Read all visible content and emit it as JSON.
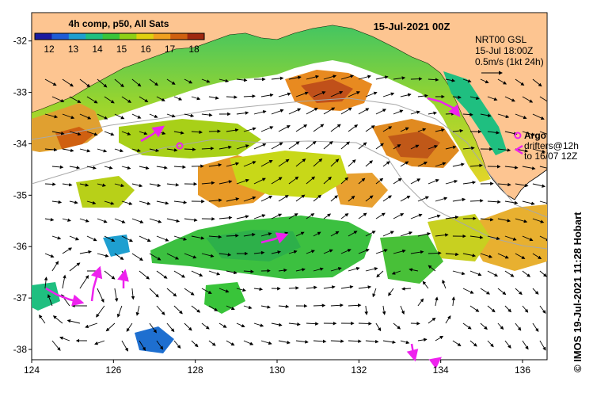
{
  "title": {
    "composite": "4h comp, p50, All Sats",
    "datetime": "15-Jul-2021 00Z"
  },
  "colorbar": {
    "ticks": [
      "12",
      "13",
      "14",
      "15",
      "16",
      "17",
      "18"
    ],
    "colors": [
      "#1a1aa0",
      "#1f5cd6",
      "#1e9fd0",
      "#1fbf80",
      "#39c43a",
      "#8ed016",
      "#e0d010",
      "#f0a020",
      "#d06010",
      "#a02810"
    ]
  },
  "current_info": {
    "source": "NRT00 GSL",
    "time": "15-Jul 18:00Z",
    "scale": "0.5m/s (1kt 24h)"
  },
  "legend": {
    "argo": "Argo",
    "drifters": "drifters@12h",
    "drifters_to": "to 16/07 12Z"
  },
  "axes": {
    "lon_ticks": [
      "124",
      "126",
      "128",
      "130",
      "132",
      "134",
      "136"
    ],
    "lat_ticks": [
      "-32",
      "-33",
      "-34",
      "-35",
      "-36",
      "-37",
      "-38"
    ],
    "lon_range": [
      124,
      136.6
    ],
    "lat_range": [
      -38.2,
      -31.45
    ]
  },
  "credit": "© IMOS 19-Jul-2021 11:28 Hobart",
  "colors": {
    "land": "#fdc591",
    "ocean_missing": "#ffffff",
    "drifter": "#ee22ee",
    "coast_warm": "#e8a030",
    "coast_green": "#38c040"
  }
}
